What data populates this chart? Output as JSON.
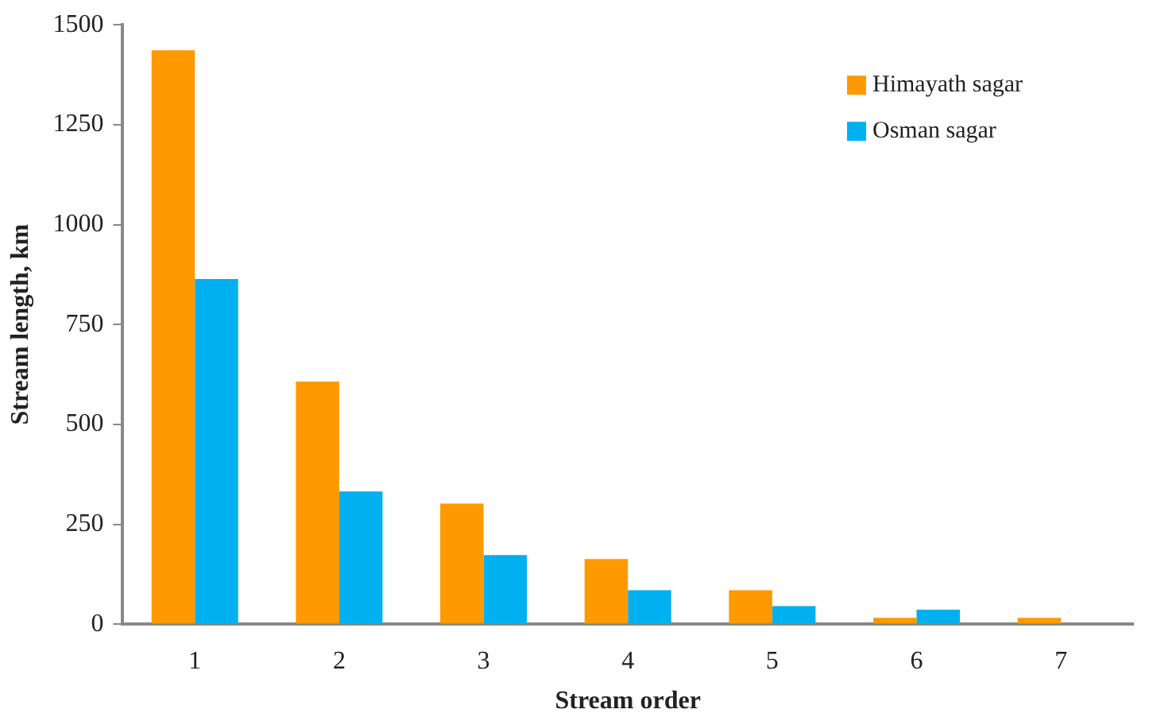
{
  "chart_data": {
    "type": "bar",
    "xlabel": "Stream order",
    "ylabel": "Stream length, km",
    "categories": [
      "1",
      "2",
      "3",
      "4",
      "5",
      "6",
      "7"
    ],
    "series": [
      {
        "name": "Himayath sagar",
        "color": "#ff9900",
        "values": [
          1436,
          607,
          302,
          163,
          85,
          16,
          16
        ]
      },
      {
        "name": "Osman sagar",
        "color": "#00b0f0",
        "values": [
          864,
          332,
          173,
          85,
          45,
          36,
          null
        ]
      }
    ],
    "ylim": [
      0,
      1500
    ],
    "yticks": [
      0,
      250,
      500,
      750,
      1000,
      1250,
      1500
    ],
    "grid": false,
    "legend": "top right"
  }
}
